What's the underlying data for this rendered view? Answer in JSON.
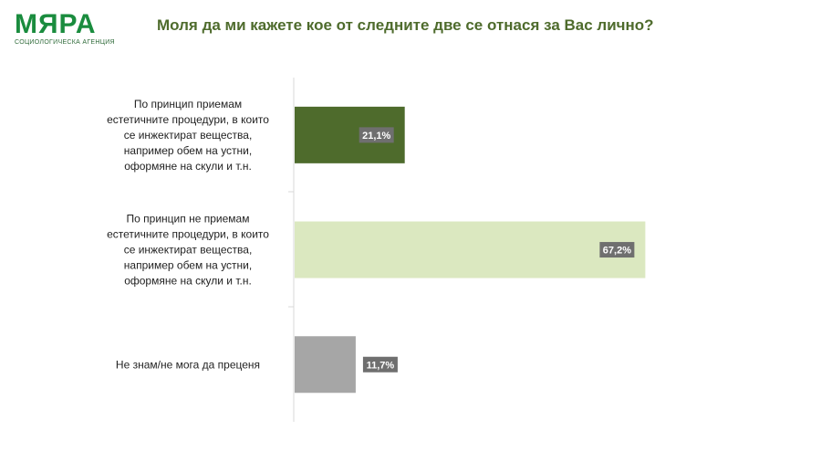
{
  "logo": {
    "name": "МЯРА",
    "tagline": "СОЦИОЛОГИЧЕСКА АГЕНЦИЯ"
  },
  "title": "Моля да ми кажете кое от следните две се отнася за Вас лично?",
  "colors": {
    "brand": "#1a8c3e",
    "title": "#4e6b2c",
    "label_bg": "#6f6f6f"
  },
  "chart_data": {
    "type": "bar",
    "orientation": "horizontal",
    "categories": [
      [
        "По принцип приемам",
        "естетичните процедури, в които",
        "се инжектират вещества,",
        "например обем на устни,",
        "оформяне на скули и т.н."
      ],
      [
        "По принцип не приемам",
        "естетичните процедури, в които",
        "се инжектират вещества,",
        "например обем на устни,",
        "оформяне на скули и т.н."
      ],
      [
        "Не знам/не мога да преценя"
      ]
    ],
    "values": [
      21.1,
      67.2,
      11.7
    ],
    "value_labels": [
      "21,1%",
      "67,2%",
      "11,7%"
    ],
    "colors": [
      "#4e6b2c",
      "#dbe8c0",
      "#a6a6a6"
    ],
    "xlim": [
      0,
      100
    ],
    "grid": false,
    "legend": "none"
  }
}
